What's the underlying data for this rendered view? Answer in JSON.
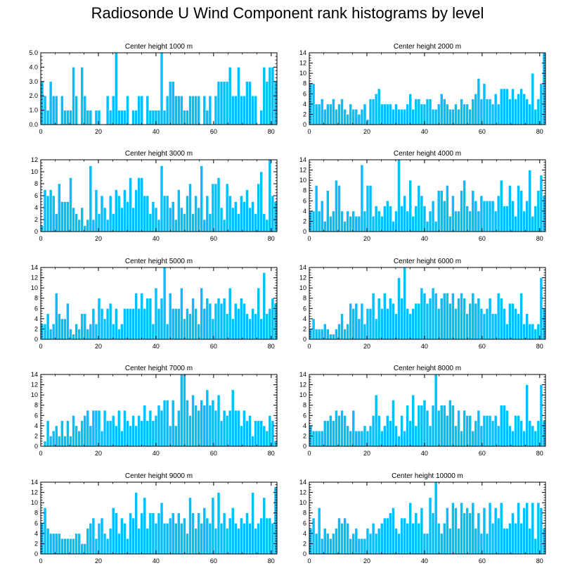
{
  "title": "Radiosonde U Wind Component rank histograms by level",
  "colors": {
    "bar": "#00BFFF",
    "bar_edge": "#FFFFFF",
    "axis": "#000000"
  },
  "chart_data": [
    {
      "type": "bar",
      "title": "Center height 1000 m",
      "xlabel": "",
      "ylabel": "",
      "xlim": [
        0,
        82
      ],
      "ylim": [
        0,
        5
      ],
      "xticks": [
        0,
        20,
        40,
        60,
        80
      ],
      "yticks": [
        0,
        1,
        2,
        3,
        4,
        5
      ],
      "ytick_labels": [
        "0.0",
        "1.0",
        "2.0",
        "3.0",
        "4.0",
        "5.0"
      ],
      "values": [
        3,
        2,
        1,
        3,
        2,
        2,
        0,
        2,
        1,
        1,
        1,
        4,
        2,
        0,
        4,
        2,
        1,
        1,
        0,
        1,
        1,
        0,
        0,
        2,
        1,
        2,
        5,
        1,
        1,
        1,
        2,
        0,
        1,
        1,
        2,
        2,
        0,
        2,
        1,
        1,
        1,
        1,
        5,
        1,
        2,
        3,
        3,
        2,
        2,
        2,
        1,
        1,
        2,
        2,
        2,
        2,
        0,
        2,
        1,
        2,
        0,
        2,
        3,
        3,
        3,
        3,
        4,
        2,
        2,
        4,
        2,
        2,
        3,
        3,
        2,
        2,
        0,
        1,
        4,
        3,
        4,
        4,
        3
      ]
    },
    {
      "type": "bar",
      "title": "Center height 2000 m",
      "xlabel": "",
      "ylabel": "",
      "xlim": [
        0,
        82
      ],
      "ylim": [
        0,
        14
      ],
      "xticks": [
        0,
        20,
        40,
        60,
        80
      ],
      "yticks": [
        0,
        2,
        4,
        6,
        8,
        10,
        12,
        14
      ],
      "ytick_labels": [
        "0",
        "2",
        "4",
        "6",
        "8",
        "10",
        "12",
        "14"
      ],
      "values": [
        8,
        8,
        4,
        4,
        5,
        3,
        4,
        4,
        5,
        3,
        4,
        5,
        3,
        2,
        4,
        3,
        3,
        2,
        3,
        4,
        1,
        5,
        5,
        6,
        7,
        4,
        4,
        4,
        4,
        3,
        4,
        3,
        3,
        3,
        4,
        6,
        3,
        5,
        5,
        4,
        4,
        5,
        5,
        3,
        3,
        4,
        6,
        5,
        4,
        3,
        3,
        4,
        3,
        5,
        4,
        4,
        3,
        5,
        6,
        9,
        5,
        8,
        5,
        5,
        4,
        6,
        4,
        7,
        7,
        7,
        5,
        7,
        5,
        6,
        7,
        6,
        5,
        4,
        10,
        3,
        5,
        8,
        14
      ]
    },
    {
      "type": "bar",
      "title": "Center height 3000 m",
      "xlabel": "",
      "ylabel": "",
      "xlim": [
        0,
        82
      ],
      "ylim": [
        0,
        12
      ],
      "xticks": [
        0,
        20,
        40,
        60,
        80
      ],
      "yticks": [
        0,
        2,
        4,
        6,
        8,
        10,
        12
      ],
      "ytick_labels": [
        "0",
        "2",
        "4",
        "6",
        "8",
        "10",
        "12"
      ],
      "values": [
        1,
        7,
        6,
        7,
        6,
        3,
        8,
        5,
        5,
        5,
        9,
        4,
        3,
        2,
        4,
        1,
        2,
        11,
        2,
        7,
        3,
        6,
        4,
        2,
        6,
        3,
        7,
        6,
        4,
        7,
        5,
        9,
        4,
        7,
        9,
        9,
        6,
        6,
        3,
        5,
        4,
        2,
        11,
        6,
        6,
        4,
        5,
        2,
        7,
        4,
        3,
        6,
        8,
        3,
        6,
        4,
        11,
        2,
        6,
        3,
        8,
        8,
        9,
        4,
        2,
        8,
        6,
        4,
        5,
        3,
        6,
        5,
        7,
        4,
        5,
        3,
        8,
        10,
        3,
        2,
        12,
        6,
        5
      ]
    },
    {
      "type": "bar",
      "title": "Center height 4000 m",
      "xlabel": "",
      "ylabel": "",
      "xlim": [
        0,
        82
      ],
      "ylim": [
        0,
        14
      ],
      "xticks": [
        0,
        20,
        40,
        60,
        80
      ],
      "yticks": [
        0,
        2,
        4,
        6,
        8,
        10,
        12,
        14
      ],
      "ytick_labels": [
        "0",
        "2",
        "4",
        "6",
        "8",
        "10",
        "12",
        "14"
      ],
      "values": [
        4,
        4,
        9,
        4,
        6,
        2,
        8,
        3,
        4,
        10,
        9,
        4,
        2,
        4,
        3,
        4,
        3,
        3,
        13,
        4,
        9,
        9,
        3,
        5,
        4,
        3,
        5,
        6,
        5,
        2,
        4,
        14,
        5,
        7,
        4,
        10,
        3,
        5,
        9,
        7,
        5,
        2,
        4,
        6,
        2,
        8,
        8,
        6,
        9,
        3,
        7,
        4,
        4,
        8,
        10,
        5,
        4,
        8,
        6,
        4,
        7,
        6,
        6,
        6,
        6,
        4,
        7,
        10,
        5,
        5,
        9,
        6,
        3,
        9,
        8,
        4,
        6,
        12,
        3,
        5,
        8,
        11,
        7
      ]
    },
    {
      "type": "bar",
      "title": "Center height 5000 m",
      "xlabel": "",
      "ylabel": "",
      "xlim": [
        0,
        82
      ],
      "ylim": [
        0,
        14
      ],
      "xticks": [
        0,
        20,
        40,
        60,
        80
      ],
      "yticks": [
        0,
        2,
        4,
        6,
        8,
        10,
        12,
        14
      ],
      "ytick_labels": [
        "0",
        "2",
        "4",
        "6",
        "8",
        "10",
        "12",
        "14"
      ],
      "values": [
        3,
        3,
        5,
        2,
        3,
        9,
        5,
        4,
        4,
        7,
        2,
        1,
        3,
        2,
        5,
        5,
        2,
        3,
        6,
        3,
        8,
        6,
        4,
        6,
        7,
        3,
        6,
        2,
        3,
        6,
        6,
        6,
        6,
        9,
        6,
        9,
        6,
        8,
        8,
        3,
        10,
        6,
        8,
        14,
        3,
        9,
        6,
        6,
        6,
        10,
        4,
        6,
        5,
        8,
        6,
        3,
        10,
        6,
        8,
        7,
        4,
        7,
        8,
        7,
        8,
        5,
        10,
        4,
        7,
        6,
        8,
        7,
        5,
        4,
        6,
        5,
        10,
        4,
        13,
        5,
        6,
        8,
        7
      ]
    },
    {
      "type": "bar",
      "title": "Center height 6000 m",
      "xlabel": "",
      "ylabel": "",
      "xlim": [
        0,
        82
      ],
      "ylim": [
        0,
        14
      ],
      "xticks": [
        0,
        20,
        40,
        60,
        80
      ],
      "yticks": [
        0,
        2,
        4,
        6,
        8,
        10,
        12,
        14
      ],
      "ytick_labels": [
        "0",
        "2",
        "4",
        "6",
        "8",
        "10",
        "12",
        "14"
      ],
      "values": [
        2,
        4,
        2,
        2,
        2,
        3,
        2,
        1,
        1,
        2,
        3,
        5,
        2,
        3,
        7,
        6,
        7,
        4,
        7,
        3,
        6,
        6,
        9,
        4,
        8,
        6,
        9,
        6,
        8,
        7,
        5,
        12,
        8,
        14,
        6,
        5,
        6,
        7,
        7,
        10,
        9,
        7,
        8,
        10,
        9,
        6,
        8,
        9,
        9,
        7,
        9,
        6,
        8,
        9,
        8,
        5,
        7,
        9,
        7,
        8,
        6,
        5,
        6,
        8,
        5,
        5,
        9,
        8,
        6,
        3,
        7,
        7,
        6,
        5,
        9,
        3,
        5,
        3,
        3,
        2,
        3,
        12,
        6
      ]
    },
    {
      "type": "bar",
      "title": "Center height 7000 m",
      "xlabel": "",
      "ylabel": "",
      "xlim": [
        0,
        82
      ],
      "ylim": [
        0,
        14
      ],
      "xticks": [
        0,
        20,
        40,
        60,
        80
      ],
      "yticks": [
        0,
        2,
        4,
        6,
        8,
        10,
        12,
        14
      ],
      "ytick_labels": [
        "0",
        "2",
        "4",
        "6",
        "8",
        "10",
        "12",
        "14"
      ],
      "values": [
        0,
        1,
        5,
        2,
        3,
        4,
        2,
        5,
        2,
        5,
        2,
        6,
        4,
        3,
        5,
        6,
        7,
        4,
        7,
        7,
        7,
        3,
        7,
        5,
        5,
        6,
        4,
        7,
        3,
        7,
        5,
        4,
        6,
        4,
        6,
        5,
        8,
        5,
        7,
        5,
        6,
        8,
        7,
        9,
        9,
        4,
        9,
        4,
        7,
        14,
        14,
        9,
        6,
        10,
        8,
        7,
        9,
        8,
        11,
        8,
        9,
        7,
        10,
        5,
        7,
        6,
        7,
        11,
        7,
        7,
        4,
        7,
        5,
        6,
        2,
        5,
        5,
        5,
        4,
        3,
        6,
        5,
        1
      ]
    },
    {
      "type": "bar",
      "title": "Center height 8000 m",
      "xlabel": "",
      "ylabel": "",
      "xlim": [
        0,
        82
      ],
      "ylim": [
        0,
        14
      ],
      "xticks": [
        0,
        20,
        40,
        60,
        80
      ],
      "yticks": [
        0,
        2,
        4,
        6,
        8,
        10,
        12,
        14
      ],
      "ytick_labels": [
        "0",
        "2",
        "4",
        "6",
        "8",
        "10",
        "12",
        "14"
      ],
      "values": [
        4,
        3,
        3,
        3,
        3,
        5,
        5,
        6,
        5,
        7,
        6,
        7,
        6,
        4,
        3,
        7,
        3,
        3,
        3,
        4,
        3,
        4,
        6,
        10,
        6,
        3,
        4,
        6,
        5,
        9,
        4,
        2,
        6,
        3,
        8,
        5,
        10,
        4,
        8,
        8,
        9,
        7,
        4,
        8,
        14,
        7,
        8,
        8,
        6,
        9,
        8,
        4,
        7,
        3,
        7,
        6,
        6,
        3,
        5,
        7,
        4,
        6,
        6,
        6,
        5,
        6,
        4,
        8,
        8,
        7,
        4,
        3,
        6,
        6,
        5,
        3,
        12,
        5,
        4,
        3,
        5,
        12,
        5
      ]
    },
    {
      "type": "bar",
      "title": "Center height 9000 m",
      "xlabel": "",
      "ylabel": "",
      "xlim": [
        0,
        82
      ],
      "ylim": [
        0,
        14
      ],
      "xticks": [
        0,
        20,
        40,
        60,
        80
      ],
      "yticks": [
        0,
        2,
        4,
        6,
        8,
        10,
        12,
        14
      ],
      "ytick_labels": [
        "0",
        "2",
        "4",
        "6",
        "8",
        "10",
        "12",
        "14"
      ],
      "values": [
        6,
        9,
        5,
        4,
        4,
        4,
        4,
        3,
        3,
        3,
        3,
        3,
        4,
        4,
        2,
        2,
        5,
        6,
        7,
        3,
        6,
        7,
        4,
        3,
        5,
        9,
        8,
        4,
        7,
        6,
        3,
        8,
        7,
        12,
        5,
        8,
        11,
        5,
        8,
        8,
        6,
        8,
        10,
        6,
        6,
        7,
        8,
        6,
        8,
        6,
        7,
        4,
        11,
        8,
        5,
        8,
        6,
        9,
        7,
        6,
        11,
        5,
        12,
        6,
        8,
        5,
        7,
        9,
        6,
        5,
        7,
        6,
        8,
        6,
        12,
        5,
        6,
        7,
        11,
        7,
        7,
        6,
        13
      ]
    },
    {
      "type": "bar",
      "title": "Center height 10000 m",
      "xlabel": "",
      "ylabel": "",
      "xlim": [
        0,
        82
      ],
      "ylim": [
        0,
        14
      ],
      "xticks": [
        0,
        20,
        40,
        60,
        80
      ],
      "yticks": [
        0,
        2,
        4,
        6,
        8,
        10,
        12,
        14
      ],
      "ytick_labels": [
        "0",
        "2",
        "4",
        "6",
        "8",
        "10",
        "12",
        "14"
      ],
      "values": [
        5,
        7,
        4,
        9,
        3,
        5,
        4,
        3,
        4,
        5,
        7,
        6,
        7,
        6,
        3,
        4,
        5,
        3,
        3,
        3,
        5,
        4,
        6,
        4,
        5,
        6,
        7,
        7,
        8,
        9,
        5,
        4,
        7,
        7,
        6,
        10,
        6,
        8,
        6,
        9,
        4,
        4,
        11,
        8,
        14,
        6,
        4,
        6,
        9,
        5,
        10,
        9,
        5,
        10,
        8,
        9,
        8,
        10,
        5,
        8,
        4,
        9,
        4,
        10,
        6,
        9,
        7,
        10,
        5,
        5,
        6,
        8,
        6,
        10,
        6,
        9,
        10,
        5,
        10,
        3,
        10,
        9,
        5
      ]
    }
  ]
}
